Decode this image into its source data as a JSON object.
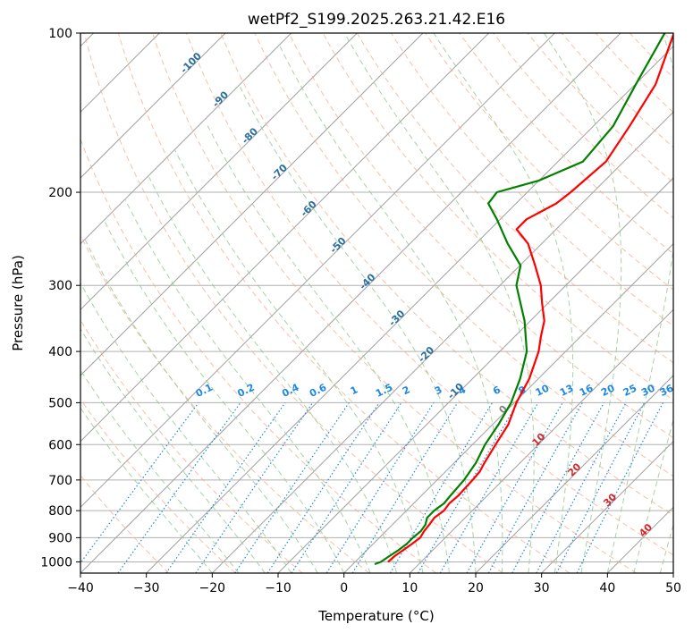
{
  "chart_data": {
    "type": "skew-t log-p",
    "title": "wetPf2_S199.2025.263.21.42.E16",
    "xlabel": "Temperature (°C)",
    "ylabel": "Pressure (hPa)",
    "xlim": [
      -40,
      50
    ],
    "ylim_hPa": [
      1050,
      100
    ],
    "x_ticks": [
      "−40",
      "−30",
      "−20",
      "−10",
      "0",
      "10",
      "20",
      "30",
      "40",
      "50"
    ],
    "y_ticks": [
      {
        "p": 100,
        "label": "100"
      },
      {
        "p": 200,
        "label": "200"
      },
      {
        "p": 300,
        "label": "300"
      },
      {
        "p": 400,
        "label": "400"
      },
      {
        "p": 500,
        "label": "500"
      },
      {
        "p": 600,
        "label": "600"
      },
      {
        "p": 700,
        "label": "700"
      },
      {
        "p": 800,
        "label": "800"
      },
      {
        "p": 900,
        "label": "900"
      },
      {
        "p": 1000,
        "label": "1000"
      }
    ],
    "grid": true,
    "colors": {
      "temperature": "#ff0000",
      "dewpoint": "#008000",
      "isotherm": "#a0a0a0",
      "dry_adiabat": "#f4a582",
      "moist_adiabat": "#8fc98f",
      "mixing_ratio": "#1e88e5",
      "isotherm_label": "#2b6f9e",
      "zero_label": "#808080",
      "warm_label": "#d62728"
    },
    "temperature_profile": {
      "name": "Temperature",
      "points": [
        [
          1000,
          5.0
        ],
        [
          975,
          5.1
        ],
        [
          950,
          5.5
        ],
        [
          925,
          5.9
        ],
        [
          900,
          6.2
        ],
        [
          875,
          5.8
        ],
        [
          850,
          5.6
        ],
        [
          825,
          5.3
        ],
        [
          800,
          5.7
        ],
        [
          775,
          5.4
        ],
        [
          750,
          5.6
        ],
        [
          700,
          5.4
        ],
        [
          675,
          5.2
        ],
        [
          650,
          4.6
        ],
        [
          600,
          3.5
        ],
        [
          550,
          2.4
        ],
        [
          500,
          0.3
        ],
        [
          450,
          -1.4
        ],
        [
          400,
          -4.1
        ],
        [
          375,
          -6.0
        ],
        [
          350,
          -7.9
        ],
        [
          325,
          -10.8
        ],
        [
          300,
          -13.8
        ],
        [
          275,
          -17.7
        ],
        [
          250,
          -22.1
        ],
        [
          235,
          -26.0
        ],
        [
          225,
          -26.0
        ],
        [
          210,
          -23.9
        ],
        [
          200,
          -23.4
        ],
        [
          175,
          -22.7
        ],
        [
          150,
          -24.5
        ],
        [
          125,
          -26.9
        ],
        [
          100,
          -31.9
        ]
      ]
    },
    "dewpoint_profile": {
      "name": "Dewpoint",
      "points": [
        [
          1010,
          3.3
        ],
        [
          1000,
          3.9
        ],
        [
          975,
          4.3
        ],
        [
          950,
          4.8
        ],
        [
          925,
          5.1
        ],
        [
          900,
          5.1
        ],
        [
          875,
          5.3
        ],
        [
          850,
          5.0
        ],
        [
          825,
          4.2
        ],
        [
          800,
          4.2
        ],
        [
          775,
          4.6
        ],
        [
          750,
          4.4
        ],
        [
          700,
          4.1
        ],
        [
          650,
          3.3
        ],
        [
          600,
          1.9
        ],
        [
          550,
          0.9
        ],
        [
          500,
          -0.5
        ],
        [
          450,
          -2.8
        ],
        [
          400,
          -5.9
        ],
        [
          350,
          -10.9
        ],
        [
          300,
          -17.5
        ],
        [
          275,
          -19.9
        ],
        [
          250,
          -25.2
        ],
        [
          225,
          -30.5
        ],
        [
          210,
          -34.2
        ],
        [
          200,
          -34.6
        ],
        [
          190,
          -30.0
        ],
        [
          175,
          -26.2
        ],
        [
          150,
          -27.0
        ],
        [
          125,
          -29.9
        ],
        [
          100,
          -33.3
        ]
      ]
    },
    "isotherm_labels": [
      {
        "t": -100,
        "label": "-100"
      },
      {
        "t": -90,
        "label": "-90"
      },
      {
        "t": -80,
        "label": "-80"
      },
      {
        "t": -70,
        "label": "-70"
      },
      {
        "t": -60,
        "label": "-60"
      },
      {
        "t": -50,
        "label": "-50"
      },
      {
        "t": -40,
        "label": "-40"
      },
      {
        "t": -30,
        "label": "-30"
      },
      {
        "t": -20,
        "label": "-20"
      },
      {
        "t": -10,
        "label": "-10"
      },
      {
        "t": 0,
        "label": "0"
      },
      {
        "t": 10,
        "label": "10"
      },
      {
        "t": 20,
        "label": "20"
      },
      {
        "t": 30,
        "label": "30"
      },
      {
        "t": 40,
        "label": "40"
      }
    ],
    "mixing_ratios": [
      {
        "w": 0.1,
        "label": "0.1"
      },
      {
        "w": 0.2,
        "label": "0.2"
      },
      {
        "w": 0.4,
        "label": "0.4"
      },
      {
        "w": 0.6,
        "label": "0.6"
      },
      {
        "w": 1,
        "label": "1"
      },
      {
        "w": 1.5,
        "label": "1.5"
      },
      {
        "w": 2,
        "label": "2"
      },
      {
        "w": 3,
        "label": "3"
      },
      {
        "w": 4,
        "label": "4"
      },
      {
        "w": 6,
        "label": "6"
      },
      {
        "w": 8,
        "label": "8"
      },
      {
        "w": 10,
        "label": "10"
      },
      {
        "w": 13,
        "label": "13"
      },
      {
        "w": 16,
        "label": "16"
      },
      {
        "w": 20,
        "label": "20"
      },
      {
        "w": 25,
        "label": "25"
      },
      {
        "w": 30,
        "label": "30"
      },
      {
        "w": 36,
        "label": "36"
      }
    ]
  }
}
